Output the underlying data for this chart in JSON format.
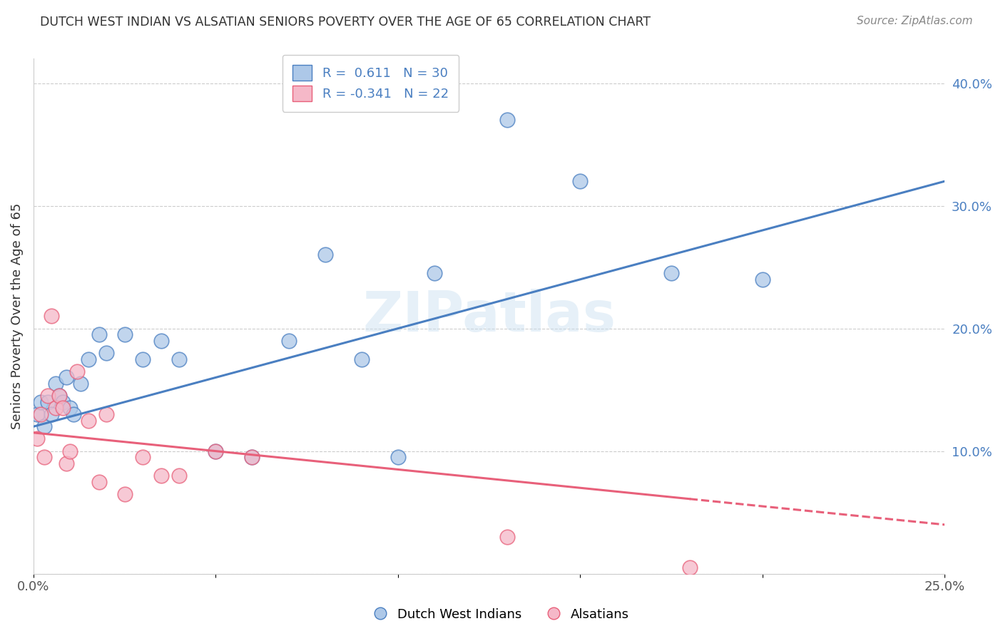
{
  "title": "DUTCH WEST INDIAN VS ALSATIAN SENIORS POVERTY OVER THE AGE OF 65 CORRELATION CHART",
  "source": "Source: ZipAtlas.com",
  "ylabel": "Seniors Poverty Over the Age of 65",
  "xlabel_blue": "Dutch West Indians",
  "xlabel_pink": "Alsatians",
  "xmin": 0.0,
  "xmax": 0.25,
  "ymin": 0.0,
  "ymax": 0.42,
  "yticks": [
    0.0,
    0.1,
    0.2,
    0.3,
    0.4
  ],
  "ytick_labels": [
    "",
    "10.0%",
    "20.0%",
    "30.0%",
    "40.0%"
  ],
  "xticks": [
    0.0,
    0.05,
    0.1,
    0.15,
    0.2,
    0.25
  ],
  "xtick_labels": [
    "0.0%",
    "",
    "",
    "",
    "",
    "25.0%"
  ],
  "blue_R": 0.611,
  "blue_N": 30,
  "pink_R": -0.341,
  "pink_N": 22,
  "blue_color": "#adc8e8",
  "pink_color": "#f5b8c8",
  "blue_line_color": "#4a7fc1",
  "pink_line_color": "#e8607a",
  "watermark": "ZIPatlas",
  "blue_scatter_x": [
    0.001,
    0.002,
    0.003,
    0.004,
    0.005,
    0.006,
    0.007,
    0.008,
    0.009,
    0.01,
    0.011,
    0.013,
    0.015,
    0.018,
    0.02,
    0.025,
    0.03,
    0.035,
    0.04,
    0.05,
    0.06,
    0.07,
    0.08,
    0.09,
    0.1,
    0.11,
    0.13,
    0.15,
    0.175,
    0.2
  ],
  "blue_scatter_y": [
    0.13,
    0.14,
    0.12,
    0.14,
    0.13,
    0.155,
    0.145,
    0.14,
    0.16,
    0.135,
    0.13,
    0.155,
    0.175,
    0.195,
    0.18,
    0.195,
    0.175,
    0.19,
    0.175,
    0.1,
    0.095,
    0.19,
    0.26,
    0.175,
    0.095,
    0.245,
    0.37,
    0.32,
    0.245,
    0.24
  ],
  "pink_scatter_x": [
    0.001,
    0.002,
    0.003,
    0.004,
    0.005,
    0.006,
    0.007,
    0.008,
    0.009,
    0.01,
    0.012,
    0.015,
    0.018,
    0.02,
    0.025,
    0.03,
    0.035,
    0.04,
    0.05,
    0.06,
    0.13,
    0.18
  ],
  "pink_scatter_y": [
    0.11,
    0.13,
    0.095,
    0.145,
    0.21,
    0.135,
    0.145,
    0.135,
    0.09,
    0.1,
    0.165,
    0.125,
    0.075,
    0.13,
    0.065,
    0.095,
    0.08,
    0.08,
    0.1,
    0.095,
    0.03,
    0.005
  ],
  "blue_line_x0": 0.0,
  "blue_line_y0": 0.12,
  "blue_line_x1": 0.25,
  "blue_line_y1": 0.32,
  "pink_line_x0": 0.0,
  "pink_line_y0": 0.115,
  "pink_line_x1": 0.25,
  "pink_line_y1": 0.04
}
